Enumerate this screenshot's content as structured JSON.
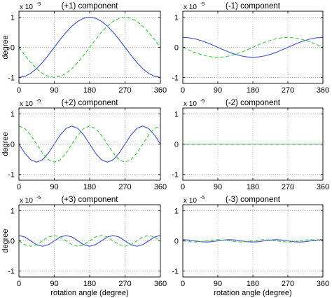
{
  "style": {
    "colors": {
      "series_1": "#3a4fd0",
      "series_2": "#3cc83c",
      "grid": "#b0b0b0",
      "axes": "#000000",
      "background": "#ffffff"
    },
    "series_1_line": "solid",
    "series_2_line": "dashed"
  },
  "chart_data": [
    {
      "type": "line",
      "title": "(+1) component",
      "scale_label": "x 10",
      "scale_exponent": "-5",
      "xlabel": "",
      "ylabel": "degree",
      "xlim": [
        0,
        360
      ],
      "ylim": [
        -1.2,
        1.2
      ],
      "xticks": [
        0,
        90,
        180,
        270,
        360
      ],
      "yticks": [
        -1,
        0,
        1
      ],
      "grid": true,
      "x": [
        0,
        15,
        30,
        45,
        60,
        75,
        90,
        105,
        120,
        135,
        150,
        165,
        180,
        195,
        210,
        225,
        240,
        255,
        270,
        285,
        300,
        315,
        330,
        345,
        360
      ],
      "series": [
        {
          "color_key": "series_1",
          "values": [
            -1.0,
            -0.966,
            -0.866,
            -0.707,
            -0.5,
            -0.259,
            0.0,
            0.259,
            0.5,
            0.707,
            0.866,
            0.966,
            1.0,
            0.966,
            0.866,
            0.707,
            0.5,
            0.259,
            0.0,
            -0.259,
            -0.5,
            -0.707,
            -0.866,
            -0.966,
            -1.0
          ]
        },
        {
          "color_key": "series_2",
          "values": [
            0.0,
            -0.259,
            -0.5,
            -0.707,
            -0.866,
            -0.966,
            -1.0,
            -0.966,
            -0.866,
            -0.707,
            -0.5,
            -0.259,
            0.0,
            0.259,
            0.5,
            0.707,
            0.866,
            0.966,
            1.0,
            0.966,
            0.866,
            0.707,
            0.5,
            0.259,
            0.0
          ]
        }
      ]
    },
    {
      "type": "line",
      "title": "(-1) component",
      "scale_label": "x 10",
      "scale_exponent": "-5",
      "xlabel": "",
      "ylabel": "",
      "xlim": [
        0,
        360
      ],
      "ylim": [
        -1.2,
        1.2
      ],
      "xticks": [
        0,
        90,
        180,
        270,
        360
      ],
      "yticks": [
        -1,
        0,
        1
      ],
      "grid": true,
      "x": [
        0,
        15,
        30,
        45,
        60,
        75,
        90,
        105,
        120,
        135,
        150,
        165,
        180,
        195,
        210,
        225,
        240,
        255,
        270,
        285,
        300,
        315,
        330,
        345,
        360
      ],
      "series": [
        {
          "color_key": "series_1",
          "values": [
            0.33,
            0.319,
            0.286,
            0.233,
            0.165,
            0.085,
            0.0,
            -0.085,
            -0.165,
            -0.233,
            -0.286,
            -0.319,
            -0.33,
            -0.319,
            -0.286,
            -0.233,
            -0.165,
            -0.085,
            0.0,
            0.085,
            0.165,
            0.233,
            0.286,
            0.319,
            0.33
          ]
        },
        {
          "color_key": "series_2",
          "values": [
            0.0,
            -0.085,
            -0.165,
            -0.233,
            -0.286,
            -0.319,
            -0.33,
            -0.319,
            -0.286,
            -0.233,
            -0.165,
            -0.085,
            0.0,
            0.085,
            0.165,
            0.233,
            0.286,
            0.319,
            0.33,
            0.319,
            0.286,
            0.233,
            0.165,
            0.085,
            0.0
          ]
        }
      ]
    },
    {
      "type": "line",
      "title": "(+2) component",
      "scale_label": "x 10",
      "scale_exponent": "-5",
      "xlabel": "",
      "ylabel": "degree",
      "xlim": [
        0,
        360
      ],
      "ylim": [
        -1.2,
        1.2
      ],
      "xticks": [
        0,
        90,
        180,
        270,
        360
      ],
      "yticks": [
        -1,
        0,
        1
      ],
      "grid": true,
      "x": [
        0,
        15,
        30,
        45,
        60,
        75,
        90,
        105,
        120,
        135,
        150,
        165,
        180,
        195,
        210,
        225,
        240,
        255,
        270,
        285,
        300,
        315,
        330,
        345,
        360
      ],
      "series": [
        {
          "color_key": "series_1",
          "values": [
            0.0,
            -0.3,
            -0.52,
            -0.6,
            -0.52,
            -0.3,
            0.0,
            0.3,
            0.52,
            0.6,
            0.52,
            0.3,
            0.0,
            -0.3,
            -0.52,
            -0.6,
            -0.52,
            -0.3,
            0.0,
            0.3,
            0.52,
            0.6,
            0.52,
            0.3,
            0.0
          ]
        },
        {
          "color_key": "series_2",
          "values": [
            0.6,
            0.52,
            0.3,
            0.0,
            -0.3,
            -0.52,
            -0.6,
            -0.52,
            -0.3,
            0.0,
            0.3,
            0.52,
            0.6,
            0.52,
            0.3,
            0.0,
            -0.3,
            -0.52,
            -0.6,
            -0.52,
            -0.3,
            0.0,
            0.3,
            0.52,
            0.6
          ]
        }
      ]
    },
    {
      "type": "line",
      "title": "(-2) component",
      "scale_label": "x 10",
      "scale_exponent": "-5",
      "xlabel": "",
      "ylabel": "",
      "xlim": [
        0,
        360
      ],
      "ylim": [
        -1.2,
        1.2
      ],
      "xticks": [
        0,
        90,
        180,
        270,
        360
      ],
      "yticks": [
        -1,
        0,
        1
      ],
      "grid": true,
      "x": [
        0,
        90,
        180,
        270,
        360
      ],
      "series": [
        {
          "color_key": "series_1",
          "values": [
            0,
            0,
            0,
            0,
            0
          ]
        },
        {
          "color_key": "series_2",
          "values": [
            0,
            0,
            0,
            0,
            0
          ]
        }
      ]
    },
    {
      "type": "line",
      "title": "(+3) component",
      "scale_label": "x 10",
      "scale_exponent": "-5",
      "xlabel": "rotation angle (degree)",
      "ylabel": "degree",
      "xlim": [
        0,
        360
      ],
      "ylim": [
        -1.2,
        1.2
      ],
      "xticks": [
        0,
        90,
        180,
        270,
        360
      ],
      "yticks": [
        -1,
        0,
        1
      ],
      "grid": true,
      "x": [
        0,
        15,
        30,
        45,
        60,
        75,
        90,
        105,
        120,
        135,
        150,
        165,
        180,
        195,
        210,
        225,
        240,
        255,
        270,
        285,
        300,
        315,
        330,
        345,
        360
      ],
      "series": [
        {
          "color_key": "series_1",
          "values": [
            0.18,
            0.127,
            0.0,
            -0.127,
            -0.18,
            -0.127,
            0.0,
            0.127,
            0.18,
            0.127,
            0.0,
            -0.127,
            -0.18,
            -0.127,
            0.0,
            0.127,
            0.18,
            0.127,
            0.0,
            -0.127,
            -0.18,
            -0.127,
            0.0,
            0.127,
            0.18
          ]
        },
        {
          "color_key": "series_2",
          "values": [
            0.0,
            -0.127,
            -0.18,
            -0.127,
            0.0,
            0.127,
            0.18,
            0.127,
            0.0,
            -0.127,
            -0.18,
            -0.127,
            0.0,
            0.127,
            0.18,
            0.127,
            0.0,
            -0.127,
            -0.18,
            -0.127,
            0.0,
            0.127,
            0.18,
            0.127,
            0.0
          ]
        }
      ]
    },
    {
      "type": "line",
      "title": "(-3) component",
      "scale_label": "x 10",
      "scale_exponent": "-5",
      "xlabel": "rotation angle (degree)",
      "ylabel": "",
      "xlim": [
        0,
        360
      ],
      "ylim": [
        -1.2,
        1.2
      ],
      "xticks": [
        0,
        90,
        180,
        270,
        360
      ],
      "yticks": [
        -1,
        0,
        1
      ],
      "grid": true,
      "x": [
        0,
        15,
        30,
        45,
        60,
        75,
        90,
        105,
        120,
        135,
        150,
        165,
        180,
        195,
        210,
        225,
        240,
        255,
        270,
        285,
        300,
        315,
        330,
        345,
        360
      ],
      "series": [
        {
          "color_key": "series_1",
          "values": [
            0.04,
            0.028,
            0.0,
            -0.028,
            -0.04,
            -0.028,
            0.0,
            0.028,
            0.04,
            0.028,
            0.0,
            -0.028,
            -0.04,
            -0.028,
            0.0,
            0.028,
            0.04,
            0.028,
            0.0,
            -0.028,
            -0.04,
            -0.028,
            0.0,
            0.028,
            0.04
          ]
        },
        {
          "color_key": "series_2",
          "values": [
            0.0,
            -0.028,
            -0.04,
            -0.028,
            0.0,
            0.028,
            0.04,
            0.028,
            0.0,
            -0.028,
            -0.04,
            -0.028,
            0.0,
            0.028,
            0.04,
            0.028,
            0.0,
            -0.028,
            -0.04,
            -0.028,
            0.0,
            0.028,
            0.04,
            0.028,
            0.0
          ]
        }
      ]
    }
  ]
}
